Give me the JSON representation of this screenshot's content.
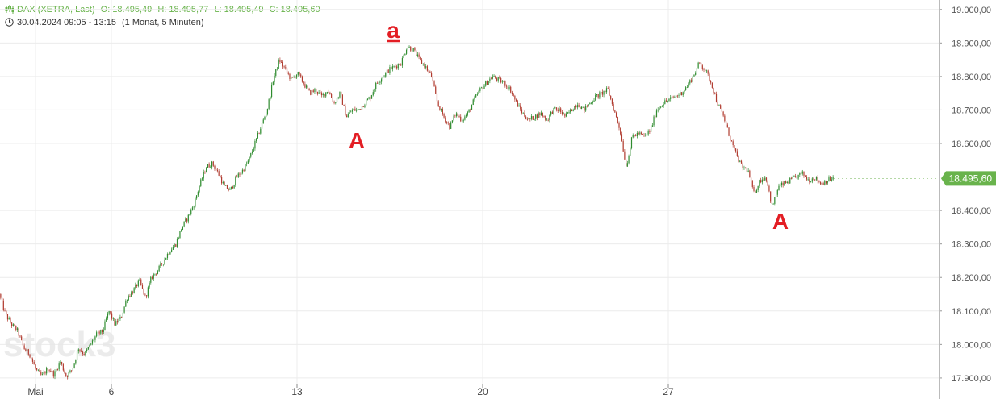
{
  "header": {
    "instrument": "DAX (XETRA, Last)",
    "open": "O: 18.495,49",
    "high": "H: 18.495,77",
    "low": "L: 18.495,49",
    "close": "C: 18.495,60",
    "date_range": "30.04.2024 09:05 - 13:15",
    "period": "(1 Monat, 5 Minuten)",
    "accent_color": "#69b34c"
  },
  "watermark": "stock3",
  "chart_data": {
    "type": "line",
    "title": "",
    "xlabel": "",
    "ylabel": "",
    "ylim": [
      17880,
      19020
    ],
    "y_ticks": [
      "19.000,00",
      "18.900,00",
      "18.800,00",
      "18.700,00",
      "18.600,00",
      "18.500,00",
      "18.400,00",
      "18.300,00",
      "18.200,00",
      "18.100,00",
      "18.000,00",
      "17.900,00"
    ],
    "x_tick_labels": [
      "Mai",
      "6",
      "13",
      "20",
      "27"
    ],
    "grid": true,
    "last_value": 18495.6,
    "last_value_label": "18.495,60",
    "up_color": "#2e8b2e",
    "down_color": "#b03a2e",
    "series": [
      {
        "values": [
          18150,
          18090,
          18060,
          18040,
          17990,
          17970,
          17925,
          17905,
          17930,
          17910,
          17950,
          17905,
          17925,
          17990,
          17970,
          18000,
          18030,
          18040,
          18100,
          18060,
          18080,
          18140,
          18160,
          18190,
          18140,
          18200,
          18220,
          18250,
          18280,
          18300,
          18350,
          18380,
          18420,
          18480,
          18530,
          18540,
          18510,
          18470,
          18460,
          18500,
          18520,
          18550,
          18600,
          18650,
          18700,
          18790,
          18850,
          18820,
          18790,
          18810,
          18780,
          18750,
          18760,
          18740,
          18760,
          18720,
          18750,
          18680,
          18700,
          18700,
          18720,
          18740,
          18780,
          18800,
          18820,
          18830,
          18840,
          18890,
          18880,
          18850,
          18830,
          18800,
          18720,
          18680,
          18650,
          18690,
          18670,
          18690,
          18730,
          18760,
          18780,
          18800,
          18790,
          18780,
          18760,
          18720,
          18690,
          18670,
          18680,
          18690,
          18670,
          18700,
          18700,
          18680,
          18700,
          18720,
          18700,
          18720,
          18740,
          18750,
          18760,
          18700,
          18640,
          18530,
          18620,
          18630,
          18620,
          18640,
          18700,
          18720,
          18730,
          18740,
          18750,
          18770,
          18800,
          18840,
          18820,
          18780,
          18720,
          18680,
          18620,
          18570,
          18530,
          18520,
          18450,
          18490,
          18500,
          18410,
          18470,
          18480,
          18490,
          18500,
          18510,
          18490,
          18500,
          18480,
          18490,
          18495.6
        ]
      }
    ],
    "annotations": [
      {
        "label": "a",
        "color": "#e31e24"
      },
      {
        "label": "A",
        "color": "#e31e24"
      },
      {
        "label": "A",
        "color": "#e31e24"
      }
    ]
  }
}
